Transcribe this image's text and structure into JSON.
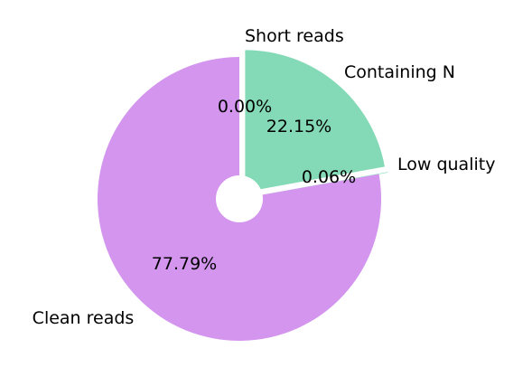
{
  "chart_data": {
    "type": "pie",
    "title": "",
    "categories": [
      "Short reads",
      "Containing N",
      "Low quality",
      "Clean reads"
    ],
    "values": [
      0.0,
      22.15,
      0.06,
      77.79
    ],
    "value_labels": [
      "0.00%",
      "22.15%",
      "0.06%",
      "77.79%"
    ],
    "colors": [
      "#84dab6",
      "#84dab6",
      "#84dab6",
      "#d395ee"
    ],
    "start_angle_deg": 90,
    "direction": "clockwise",
    "exploded": [
      true,
      true,
      true,
      false
    ],
    "donut": true,
    "legend": "none"
  }
}
